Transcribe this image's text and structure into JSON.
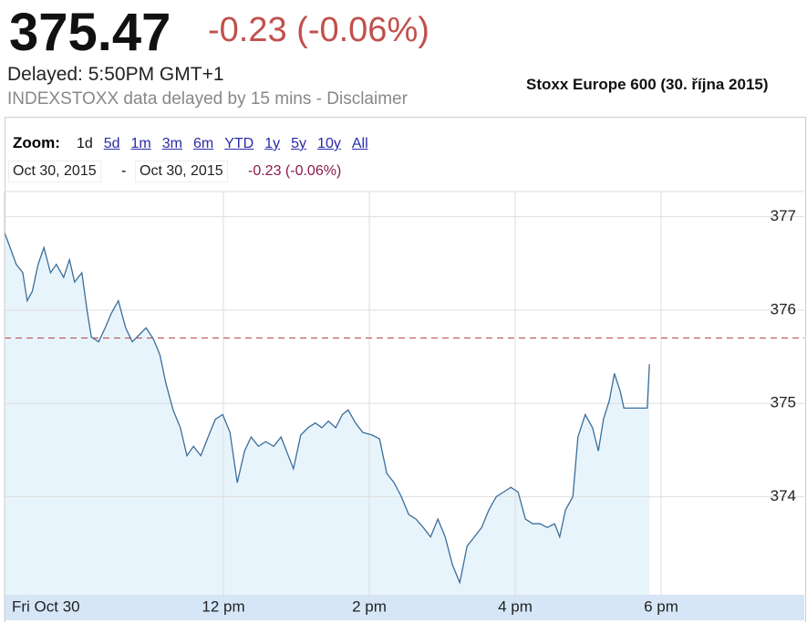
{
  "header": {
    "price": "375.47",
    "change": "-0.23 (-0.06%)",
    "delayed": "Delayed:   5:50PM GMT+1",
    "disclaimer": "INDEXSTOXX data delayed by 15 mins - Disclaimer"
  },
  "controls": {
    "zoom_label": "Zoom:",
    "zoom_options": [
      "1d",
      "5d",
      "1m",
      "3m",
      "6m",
      "YTD",
      "1y",
      "5y",
      "10y",
      "All"
    ],
    "start_date": "Oct 30, 2015",
    "separator": "-",
    "end_date": "Oct 30, 2015",
    "range_change": "-0.23 (-0.06%)"
  },
  "chart_data": {
    "type": "line",
    "title": "Stoxx Europe 600 (30. října 2015)",
    "x": [
      9.0,
      9.09,
      9.16,
      9.25,
      9.31,
      9.38,
      9.46,
      9.54,
      9.63,
      9.71,
      9.81,
      9.89,
      9.96,
      10.06,
      10.13,
      10.19,
      10.29,
      10.38,
      10.46,
      10.56,
      10.66,
      10.75,
      10.84,
      10.94,
      11.04,
      11.13,
      11.21,
      11.31,
      11.41,
      11.5,
      11.59,
      11.69,
      11.79,
      11.89,
      11.99,
      12.09,
      12.19,
      12.29,
      12.38,
      12.48,
      12.58,
      12.69,
      12.79,
      12.89,
      12.96,
      13.06,
      13.16,
      13.26,
      13.35,
      13.44,
      13.54,
      13.63,
      13.71,
      13.81,
      13.91,
      14.04,
      14.14,
      14.24,
      14.34,
      14.44,
      14.54,
      14.64,
      14.74,
      14.84,
      14.94,
      15.04,
      15.14,
      15.24,
      15.34,
      15.44,
      15.54,
      15.64,
      15.74,
      15.84,
      15.94,
      16.04,
      16.14,
      16.24,
      16.34,
      16.44,
      16.54,
      16.61,
      16.69,
      16.79,
      16.86,
      16.96,
      17.06,
      17.14,
      17.21,
      17.29,
      17.36,
      17.44,
      17.49,
      17.81,
      17.84
    ],
    "series": [
      {
        "name": "Stoxx Europe 600",
        "color": "#3b6e9a",
        "values": [
          376.83,
          376.64,
          376.49,
          376.4,
          376.1,
          376.2,
          376.49,
          376.67,
          376.4,
          376.49,
          376.35,
          376.54,
          376.3,
          376.4,
          376.0,
          375.71,
          375.66,
          375.81,
          375.96,
          376.1,
          375.81,
          375.66,
          375.73,
          375.81,
          375.69,
          375.52,
          375.22,
          374.93,
          374.74,
          374.44,
          374.54,
          374.44,
          374.64,
          374.83,
          374.88,
          374.69,
          374.15,
          374.49,
          374.64,
          374.54,
          374.59,
          374.54,
          374.64,
          374.44,
          374.3,
          374.66,
          374.74,
          374.79,
          374.74,
          374.81,
          374.74,
          374.88,
          374.93,
          374.79,
          374.69,
          374.66,
          374.62,
          374.25,
          374.15,
          374.0,
          373.81,
          373.76,
          373.67,
          373.57,
          373.76,
          373.57,
          373.27,
          373.08,
          373.47,
          373.57,
          373.67,
          373.86,
          374.0,
          374.05,
          374.1,
          374.05,
          373.76,
          373.71,
          373.71,
          373.67,
          373.71,
          373.57,
          373.86,
          374.0,
          374.64,
          374.88,
          374.74,
          374.49,
          374.83,
          375.03,
          375.32,
          375.13,
          374.95,
          374.95,
          375.42
        ]
      }
    ],
    "previous_close": 375.7,
    "xlim": [
      9,
      20
    ],
    "xticks": [
      {
        "value": 9,
        "label": "Fri Oct 30"
      },
      {
        "value": 12,
        "label": "12 pm"
      },
      {
        "value": 14,
        "label": "2 pm"
      },
      {
        "value": 16,
        "label": "4 pm"
      },
      {
        "value": 18,
        "label": "6 pm"
      }
    ],
    "ylim": [
      372.95,
      377.27
    ],
    "yticks": [
      374,
      375,
      376,
      377
    ],
    "grid": true,
    "fill": "#e8f4fc"
  }
}
